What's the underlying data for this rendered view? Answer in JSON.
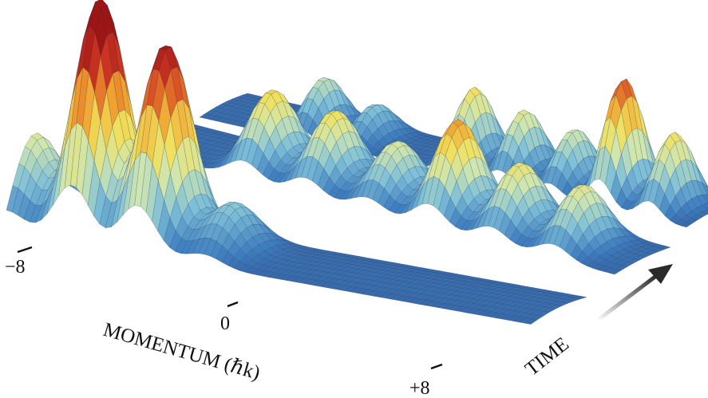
{
  "chart_data": {
    "type": "surface",
    "xlabel": "MOMENTUM (ℏk)",
    "time_label": "TIME",
    "x_ticks": [
      {
        "value": -8,
        "label": "−8"
      },
      {
        "value": 0,
        "label": "0"
      },
      {
        "value": 8,
        "label": "+8"
      }
    ],
    "xlim": [
      -8,
      8
    ],
    "colormap": [
      "#2b4a8c",
      "#3f7fc0",
      "#7fc0d8",
      "#cfe6b0",
      "#f2e05a",
      "#f0a030",
      "#d23a22",
      "#9e1515"
    ],
    "series": [
      {
        "peaks": [
          {
            "x": -8,
            "y": 0.35
          },
          {
            "x": -6,
            "y": 1.0
          },
          {
            "x": -4,
            "y": 0.85
          },
          {
            "x": -2,
            "y": 0.2
          }
        ]
      },
      {
        "peaks": [
          {
            "x": -4,
            "y": 0.48
          },
          {
            "x": -2,
            "y": 0.45
          },
          {
            "x": 0,
            "y": 0.35
          },
          {
            "x": 2,
            "y": 0.6
          },
          {
            "x": 4,
            "y": 0.42
          },
          {
            "x": 6,
            "y": 0.38
          }
        ]
      },
      {
        "peaks": [
          {
            "x": -4,
            "y": 0.3
          },
          {
            "x": -2,
            "y": 0.2
          },
          {
            "x": 2,
            "y": 0.45
          },
          {
            "x": 4,
            "y": 0.38
          },
          {
            "x": 6,
            "y": 0.33
          },
          {
            "x": 8,
            "y": 0.72
          },
          {
            "x": 10,
            "y": 0.45
          }
        ]
      }
    ]
  }
}
